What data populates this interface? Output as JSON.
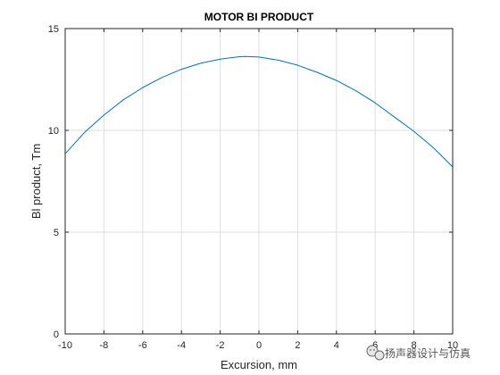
{
  "chart_data": {
    "type": "line",
    "title": "MOTOR BI PRODUCT",
    "xlabel": "Excursion, mm",
    "ylabel": "Bl product, Tm",
    "xlim": [
      -10,
      10
    ],
    "ylim": [
      0,
      15
    ],
    "xticks": [
      -10,
      -8,
      -6,
      -4,
      -2,
      0,
      2,
      4,
      6,
      8,
      10
    ],
    "yticks": [
      0,
      5,
      10,
      15
    ],
    "grid": true,
    "series": [
      {
        "color": "#0072BD",
        "x": [
          -10,
          -9,
          -8,
          -7,
          -6,
          -5,
          -4,
          -3,
          -2,
          -1,
          -0.7,
          0,
          1,
          2,
          3,
          4,
          5,
          6,
          7,
          8,
          9,
          10
        ],
        "y": [
          8.85,
          9.9,
          10.75,
          11.5,
          12.1,
          12.6,
          13.0,
          13.3,
          13.5,
          13.62,
          13.63,
          13.6,
          13.45,
          13.2,
          12.85,
          12.45,
          11.95,
          11.35,
          10.65,
          9.95,
          9.15,
          8.2
        ]
      }
    ]
  },
  "watermark": {
    "text": "扬声器设计与仿真",
    "icon": "wechat-icon"
  }
}
